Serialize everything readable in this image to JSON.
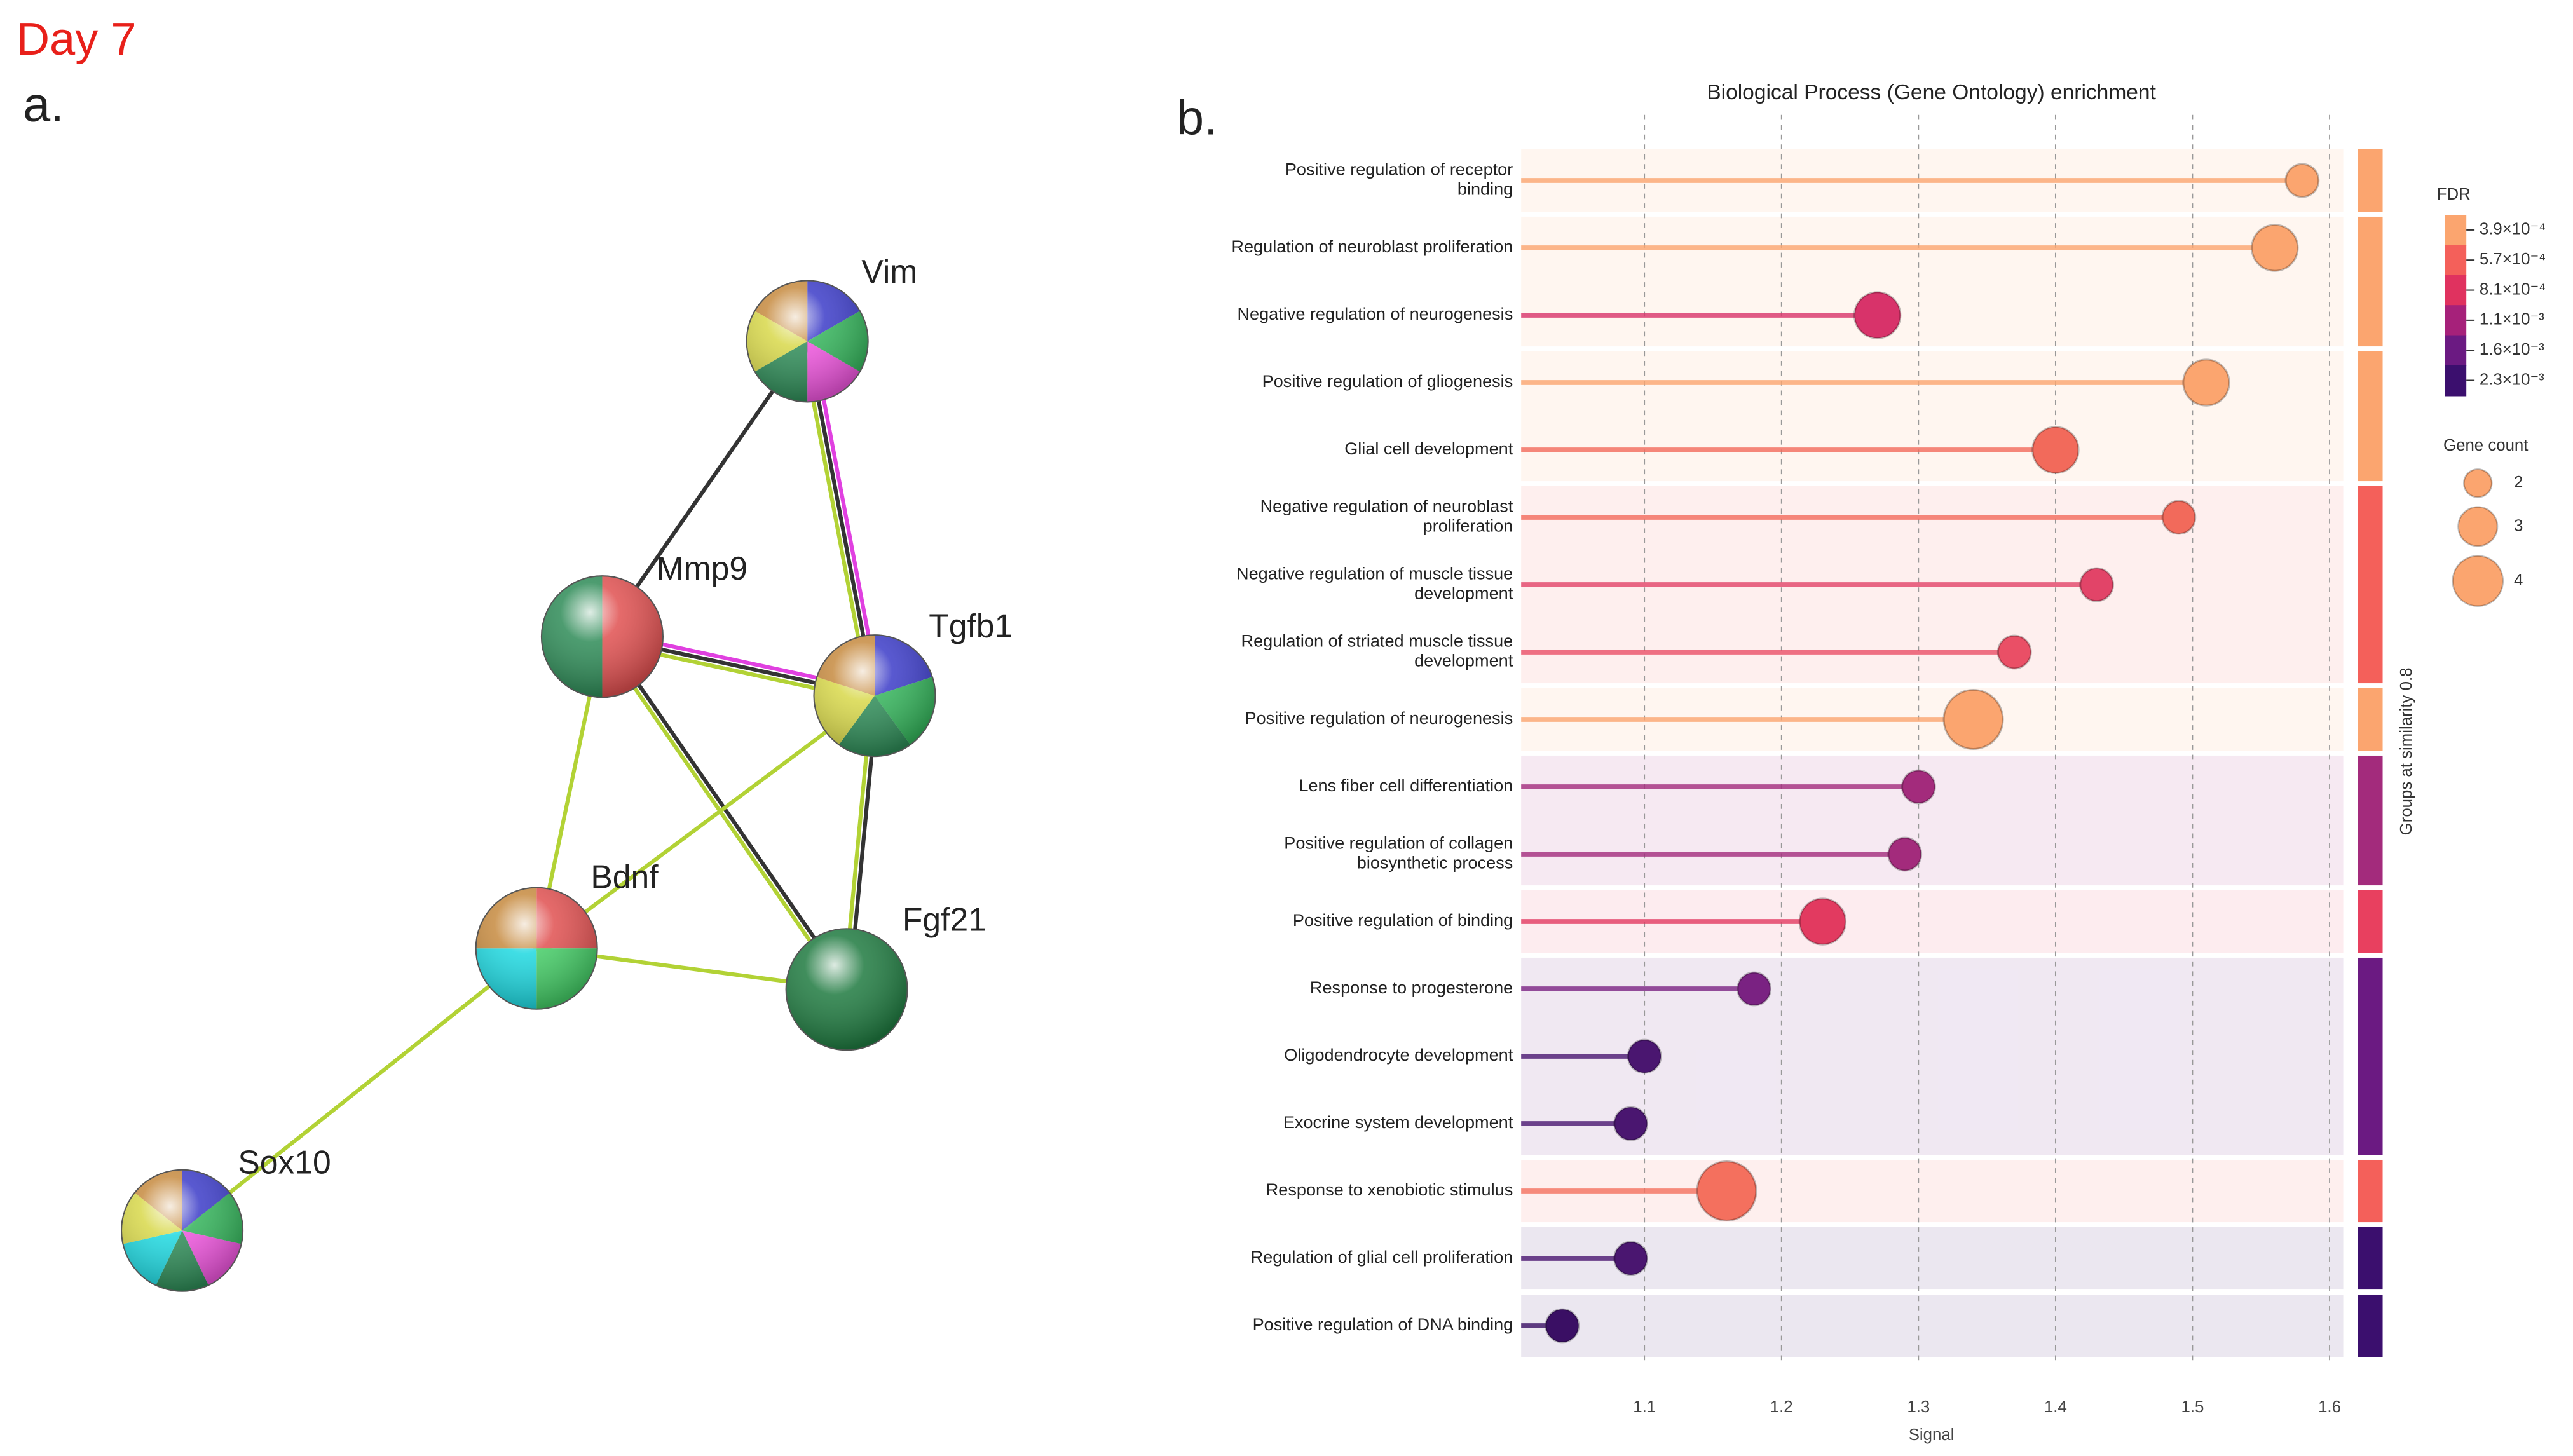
{
  "figure_label": "Day 7",
  "panel_a": {
    "label": "a.",
    "nodes": [
      {
        "label": "Vim"
      },
      {
        "label": "Mmp9"
      },
      {
        "label": "Tgfb1"
      },
      {
        "label": "Bdnf"
      },
      {
        "label": "Fgf21"
      },
      {
        "label": "Sox10"
      }
    ]
  },
  "panel_b_label": "b.",
  "chart_data": {
    "type": "lollipop",
    "title": "Biological Process (Gene Ontology) enrichment",
    "x_label": "Signal",
    "group_axis_label": "Groups at similarity 0.8",
    "categories": [
      "Positive regulation of receptor\nbinding",
      "Regulation of neuroblast proliferation",
      "Negative regulation of neurogenesis",
      "Positive regulation of gliogenesis",
      "Glial cell development",
      "Negative regulation of neuroblast\nproliferation",
      "Negative regulation of muscle tissue\ndevelopment",
      "Regulation of striated muscle tissue\ndevelopment",
      "Positive regulation of neurogenesis",
      "Lens fiber cell differentiation",
      "Positive regulation of collagen\nbiosynthetic process",
      "Positive regulation of binding",
      "Response to progesterone",
      "Oligodendrocyte development",
      "Exocrine system development",
      "Response to xenobiotic stimulus",
      "Regulation of glial cell proliferation",
      "Positive regulation of DNA binding"
    ],
    "values": [
      1.58,
      1.56,
      1.27,
      1.51,
      1.4,
      1.49,
      1.43,
      1.37,
      1.34,
      1.3,
      1.29,
      1.23,
      1.18,
      1.1,
      1.09,
      1.16,
      1.09,
      1.04
    ],
    "gene_counts": [
      2,
      3,
      3,
      3,
      3,
      2,
      2,
      2,
      4,
      2,
      2,
      3,
      2,
      2,
      2,
      4,
      2,
      2
    ],
    "colors": [
      "#fba56f",
      "#fba56f",
      "#d8336a",
      "#fba56f",
      "#f26a5b",
      "#f26a5b",
      "#e24468",
      "#ea4f66",
      "#fba56f",
      "#a32b7c",
      "#a32b7c",
      "#e23a60",
      "#7a2282",
      "#4a1670",
      "#4a1670",
      "#f4705e",
      "#4a1670",
      "#3a0f64"
    ],
    "group_sizes": [
      1,
      2,
      2,
      3,
      1,
      2,
      1,
      3,
      1,
      1,
      1
    ],
    "group_colors": [
      "#fba56f",
      "#fba56f",
      "#fba56f",
      "#f4605a",
      "#fba56f",
      "#a32b7c",
      "#e8405f",
      "#6b1a82",
      "#f4605a",
      "#3b0f6e",
      "#3b0f6e"
    ],
    "xlim": [
      1.01,
      1.61
    ],
    "xticks": [
      1.1,
      1.2,
      1.3,
      1.4,
      1.5,
      1.6
    ],
    "grid": true,
    "fdr_legend": {
      "title": "FDR",
      "ticks": [
        {
          "value": 0.00039,
          "label": "3.9×10⁻⁴"
        },
        {
          "value": 0.00057,
          "label": "5.7×10⁻⁴"
        },
        {
          "value": 0.00081,
          "label": "8.1×10⁻⁴"
        },
        {
          "value": 0.0011,
          "label": "1.1×10⁻³"
        },
        {
          "value": 0.0016,
          "label": "1.6×10⁻³"
        },
        {
          "value": 0.0023,
          "label": "2.3×10⁻³"
        }
      ],
      "colors": [
        "#fba56f",
        "#f4605a",
        "#e0325f",
        "#a6217a",
        "#6b1a82",
        "#3b0f6e"
      ]
    },
    "size_legend": {
      "title": "Gene count",
      "values": [
        2,
        3,
        4
      ]
    }
  }
}
